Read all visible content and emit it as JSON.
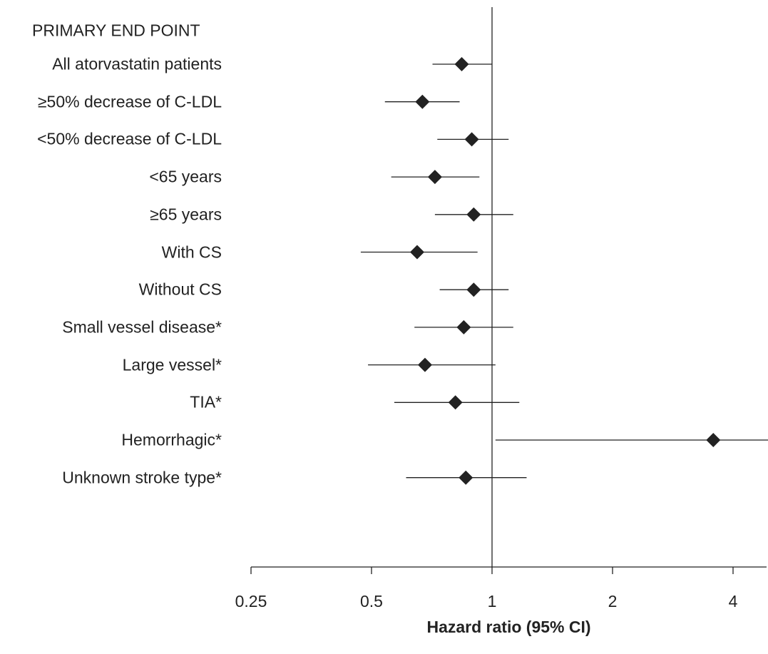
{
  "chart_data": {
    "type": "forest",
    "header": "PRIMARY END POINT",
    "xlabel": "Hazard ratio (95% CI)",
    "xscale": "log2",
    "xlim": [
      0.25,
      5
    ],
    "xticks": [
      0.25,
      0.5,
      1,
      2,
      4
    ],
    "xtick_labels": [
      "0.25",
      "0.5",
      "1",
      "2",
      "4"
    ],
    "reference_line": 1,
    "rows": [
      {
        "label": "All atorvastatin patients",
        "hr": 0.84,
        "lo": 0.71,
        "hi": 1.0
      },
      {
        "label": "≥50% decrease of C-LDL",
        "hr": 0.67,
        "lo": 0.54,
        "hi": 0.83
      },
      {
        "label": "<50% decrease of C-LDL",
        "hr": 0.89,
        "lo": 0.73,
        "hi": 1.1
      },
      {
        "label": "<65 years",
        "hr": 0.72,
        "lo": 0.56,
        "hi": 0.93
      },
      {
        "label": "≥65 years",
        "hr": 0.9,
        "lo": 0.72,
        "hi": 1.13
      },
      {
        "label": "With CS",
        "hr": 0.65,
        "lo": 0.47,
        "hi": 0.92
      },
      {
        "label": "Without CS",
        "hr": 0.9,
        "lo": 0.74,
        "hi": 1.1
      },
      {
        "label": "Small vessel disease*",
        "hr": 0.85,
        "lo": 0.64,
        "hi": 1.13
      },
      {
        "label": "Large vessel*",
        "hr": 0.68,
        "lo": 0.49,
        "hi": 1.02
      },
      {
        "label": "TIA*",
        "hr": 0.81,
        "lo": 0.57,
        "hi": 1.17
      },
      {
        "label": "Hemorrhagic*",
        "hr": 3.57,
        "lo": 1.02,
        "hi": 5.0
      },
      {
        "label": "Unknown stroke type*",
        "hr": 0.86,
        "lo": 0.61,
        "hi": 1.22
      }
    ]
  }
}
